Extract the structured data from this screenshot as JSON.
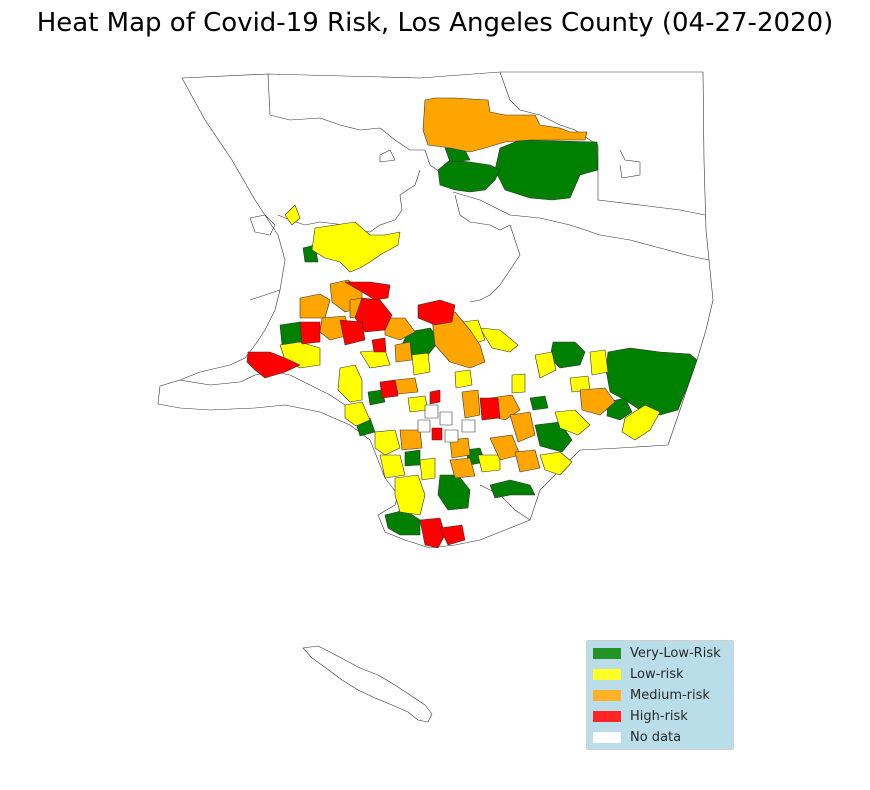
{
  "title": "Heat Map of Covid-19 Risk, Los Angeles County (04-27-2020)",
  "colors": {
    "very_low": "#008000",
    "low": "#ffff00",
    "medium": "#ffa500",
    "high": "#ff0000",
    "no_data": "#ffffff",
    "border": "#333333",
    "legend_bg": "#add8e6"
  },
  "legend": {
    "placement": "lower-right",
    "items": [
      {
        "label": "Very-Low-Risk",
        "color": "#008000"
      },
      {
        "label": "Low-risk",
        "color": "#ffff00"
      },
      {
        "label": "Medium-risk",
        "color": "#ffa500"
      },
      {
        "label": "High-risk",
        "color": "#ff0000"
      },
      {
        "label": "No data",
        "color": "#ffffff"
      }
    ]
  }
}
